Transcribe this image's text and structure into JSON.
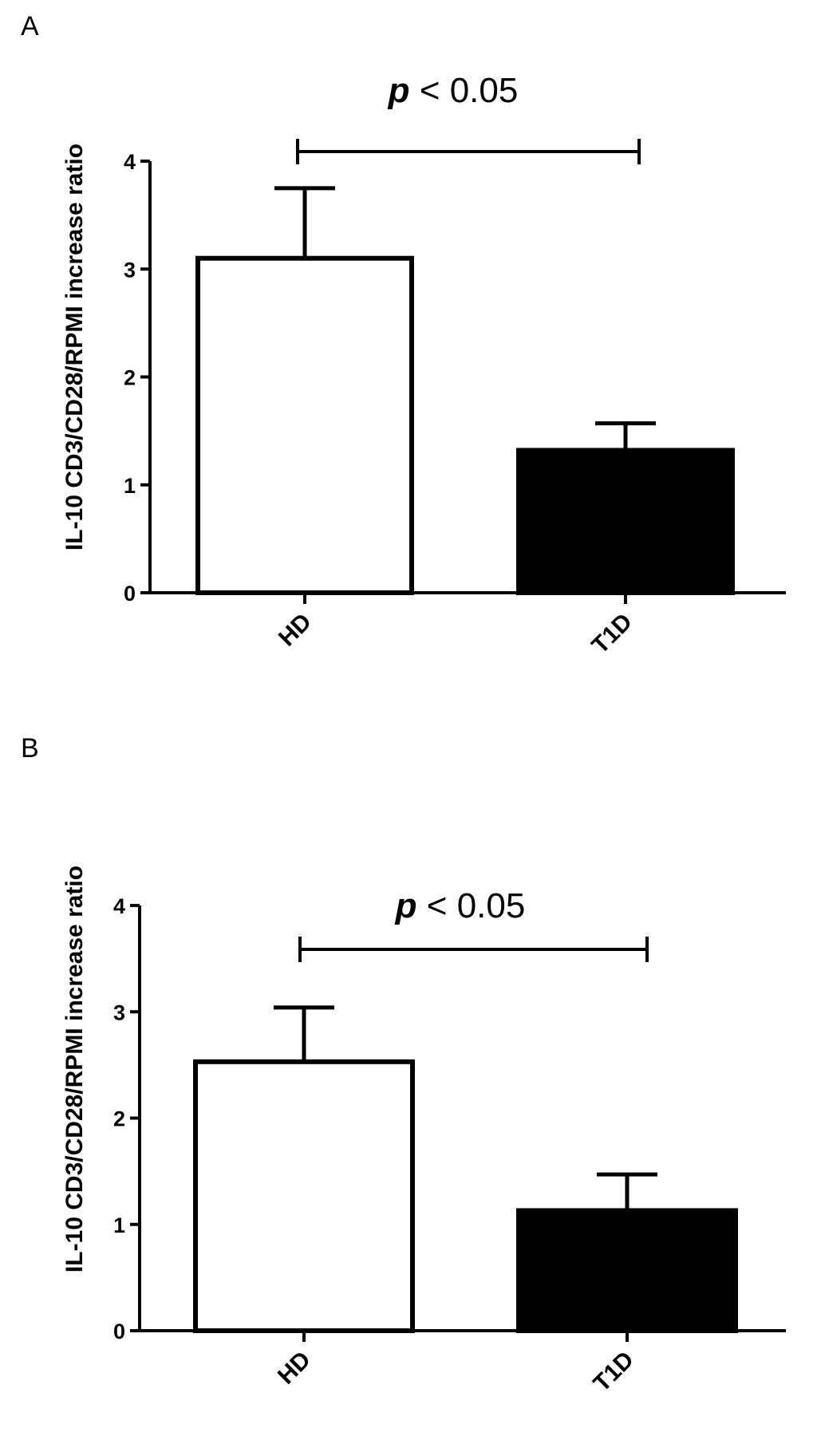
{
  "chart_data": [
    {
      "panel": "A",
      "type": "bar",
      "categories": [
        "HD",
        "T1D"
      ],
      "values": [
        3.1,
        1.32
      ],
      "errors_upper": [
        3.75,
        1.57
      ],
      "colors": [
        "#ffffff",
        "#000000"
      ],
      "ylabel": "IL-10 CD3/CD28/RPMI increase ratio",
      "ylim": [
        0,
        4
      ],
      "yticks": [
        "0",
        "1",
        "2",
        "3",
        "4"
      ],
      "annotation": {
        "p": "p",
        "rest": " < 0.05"
      }
    },
    {
      "panel": "B",
      "type": "bar",
      "categories": [
        "HD",
        "T1D"
      ],
      "values": [
        2.53,
        1.13
      ],
      "errors_upper": [
        3.04,
        1.47
      ],
      "colors": [
        "#ffffff",
        "#000000"
      ],
      "ylabel": "IL-10 CD3/CD28/RPMI increase ratio",
      "ylim": [
        0,
        4
      ],
      "yticks": [
        "0",
        "1",
        "2",
        "3",
        "4"
      ],
      "annotation": {
        "p": "p",
        "rest": " < 0.05"
      }
    }
  ]
}
